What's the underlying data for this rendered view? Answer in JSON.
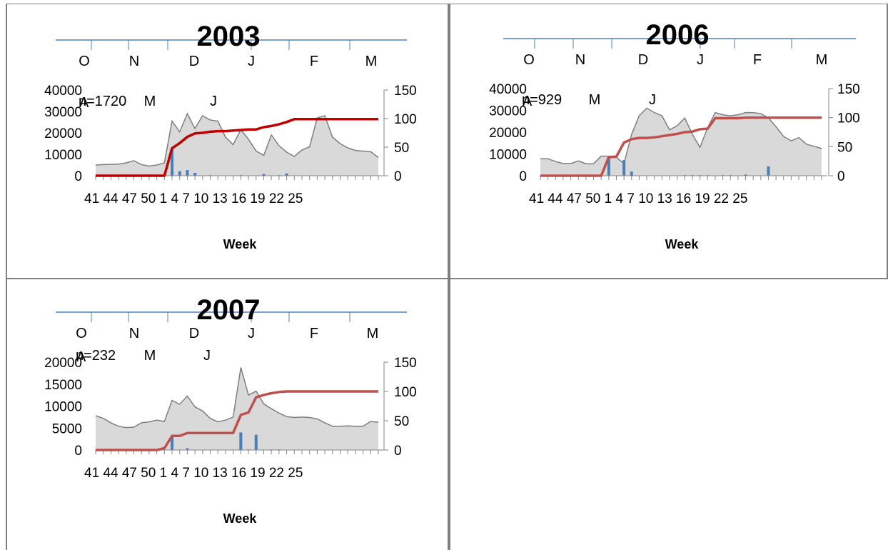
{
  "chart_data": [
    {
      "type": "area",
      "title": "2003",
      "n_label": "n=1720",
      "month_labels_top": [
        "O",
        "N",
        "D",
        "J",
        "F",
        "M"
      ],
      "month_labels_bottom": [
        "A",
        "M",
        "J"
      ],
      "xlabel": "Week",
      "weeks": [
        41,
        42,
        43,
        44,
        45,
        46,
        47,
        48,
        49,
        50,
        51,
        52,
        1,
        2,
        3,
        4,
        5,
        6,
        7,
        8,
        9,
        10,
        11,
        12,
        13,
        14,
        15,
        16,
        17,
        18,
        19,
        20,
        21,
        22,
        23,
        24,
        25,
        26
      ],
      "x_tick_labels": [
        "41",
        "44",
        "47",
        "50",
        "1",
        "4",
        "7",
        "10",
        "13",
        "16",
        "19",
        "22",
        "25"
      ],
      "ylim_left": [
        0,
        40000
      ],
      "yticks_left": [
        0,
        10000,
        20000,
        30000,
        40000
      ],
      "ylim_right": [
        0,
        150
      ],
      "yticks_right": [
        0,
        50,
        100,
        150
      ],
      "series": [
        {
          "kind": "area",
          "color": "#d9d9d9",
          "stroke": "#7f7f7f",
          "axis": "left",
          "values": [
            5000,
            5200,
            5300,
            5400,
            6000,
            7000,
            5200,
            4500,
            5000,
            6000,
            25500,
            20500,
            29000,
            22000,
            28000,
            26000,
            25500,
            18000,
            14500,
            21500,
            17000,
            11500,
            9500,
            19000,
            14000,
            11000,
            9000,
            12000,
            13500,
            27000,
            28000,
            18000,
            15000,
            13000,
            11800,
            11500,
            11200,
            8500
          ]
        },
        {
          "kind": "bar",
          "color": "#4a7ebb",
          "axis": "right",
          "values": [
            0,
            0,
            0,
            0,
            0,
            0,
            0,
            0,
            0,
            0,
            48,
            8,
            10,
            5,
            0,
            1,
            0,
            0,
            0,
            1,
            0,
            0,
            3,
            0,
            1,
            4,
            0,
            0,
            0,
            0,
            0,
            0,
            0,
            0,
            0,
            0,
            0,
            0
          ]
        },
        {
          "kind": "line",
          "color": "#c00000",
          "axis": "right",
          "values": [
            0,
            0,
            0,
            0,
            0,
            0,
            0,
            0,
            0,
            0,
            48,
            57,
            68,
            74,
            75,
            77,
            78,
            78,
            79,
            80,
            81,
            81,
            85,
            87,
            90,
            94,
            99,
            99,
            99,
            99,
            99,
            99,
            99,
            99,
            99,
            99,
            99,
            99
          ]
        }
      ]
    },
    {
      "type": "area",
      "title": "2006",
      "n_label": "n=929",
      "month_labels_top": [
        "O",
        "N",
        "D",
        "J",
        "F",
        "M"
      ],
      "month_labels_bottom": [
        "A",
        "M",
        "J"
      ],
      "xlabel": "Week",
      "weeks": [
        41,
        42,
        43,
        44,
        45,
        46,
        47,
        48,
        49,
        50,
        51,
        52,
        1,
        2,
        3,
        4,
        5,
        6,
        7,
        8,
        9,
        10,
        11,
        12,
        13,
        14,
        15,
        16,
        17,
        18,
        19,
        20,
        21,
        22,
        23,
        24,
        25,
        26
      ],
      "x_tick_labels": [
        "41",
        "44",
        "47",
        "50",
        "1",
        "4",
        "7",
        "10",
        "13",
        "16",
        "19",
        "22",
        "25"
      ],
      "ylim_left": [
        0,
        40000
      ],
      "yticks_left": [
        0,
        10000,
        20000,
        30000,
        40000
      ],
      "ylim_right": [
        0,
        150
      ],
      "yticks_right": [
        0,
        50,
        100,
        150
      ],
      "series": [
        {
          "kind": "area",
          "color": "#d9d9d9",
          "stroke": "#7f7f7f",
          "axis": "left",
          "values": [
            7800,
            7800,
            6500,
            5600,
            5600,
            6800,
            5500,
            5500,
            9000,
            9000,
            8500,
            5500,
            19000,
            27500,
            31000,
            29000,
            27500,
            21000,
            23000,
            26500,
            19000,
            13000,
            22000,
            29000,
            28000,
            27500,
            28000,
            29000,
            29000,
            28500,
            26500,
            22500,
            18000,
            16000,
            17500,
            14500,
            13500,
            12500
          ]
        },
        {
          "kind": "bar",
          "color": "#4a7ebb",
          "axis": "right",
          "values": [
            0,
            0,
            0,
            0,
            0,
            0,
            0,
            0,
            0,
            32,
            0,
            27,
            7,
            0,
            0,
            0,
            0,
            0,
            0,
            1,
            1,
            1,
            1,
            0,
            1,
            1,
            0,
            2,
            0,
            0,
            16,
            0,
            0,
            0,
            0,
            0,
            0,
            0
          ]
        },
        {
          "kind": "line",
          "color": "#c0504d",
          "axis": "right",
          "values": [
            0,
            0,
            0,
            0,
            0,
            0,
            0,
            0,
            0,
            32,
            33,
            57,
            63,
            65,
            65,
            66,
            68,
            70,
            72,
            75,
            76,
            80,
            81,
            99,
            99,
            99,
            99,
            100,
            100,
            100,
            100,
            100,
            100,
            100,
            100,
            100,
            100,
            100
          ]
        }
      ]
    },
    {
      "type": "area",
      "title": "2007",
      "n_label": "n=232",
      "month_labels_top": [
        "O",
        "N",
        "D",
        "J",
        "F",
        "M"
      ],
      "month_labels_bottom": [
        "A",
        "M",
        "J"
      ],
      "xlabel": "Week",
      "weeks": [
        41,
        42,
        43,
        44,
        45,
        46,
        47,
        48,
        49,
        50,
        51,
        52,
        1,
        2,
        3,
        4,
        5,
        6,
        7,
        8,
        9,
        10,
        11,
        12,
        13,
        14,
        15,
        16,
        17,
        18,
        19,
        20,
        21,
        22,
        23,
        24,
        25,
        26
      ],
      "x_tick_labels": [
        "41",
        "44",
        "47",
        "50",
        "1",
        "4",
        "7",
        "10",
        "13",
        "16",
        "19",
        "22",
        "25"
      ],
      "ylim_left": [
        0,
        20000
      ],
      "yticks_left": [
        0,
        5000,
        10000,
        15000,
        20000
      ],
      "ylim_right": [
        0,
        150
      ],
      "yticks_right": [
        0,
        50,
        100,
        150
      ],
      "series": [
        {
          "kind": "area",
          "color": "#d9d9d9",
          "stroke": "#7f7f7f",
          "axis": "left",
          "values": [
            7800,
            7200,
            6200,
            5400,
            5100,
            5200,
            6200,
            6400,
            6800,
            6500,
            11300,
            10400,
            12300,
            9800,
            8900,
            7200,
            6400,
            6800,
            7500,
            18800,
            12500,
            13400,
            10500,
            9400,
            8400,
            7600,
            7400,
            7500,
            7400,
            7100,
            6200,
            5400,
            5400,
            5500,
            5400,
            5400,
            6500,
            6300
          ]
        },
        {
          "kind": "bar",
          "color": "#4a7ebb",
          "axis": "right",
          "values": [
            0,
            0,
            0,
            0,
            0,
            0,
            0,
            0,
            0,
            0,
            22,
            0,
            3,
            0,
            0,
            0,
            0,
            0,
            0,
            30,
            1,
            26,
            0,
            1,
            1,
            0,
            0,
            0,
            0,
            0,
            0,
            0,
            0,
            0,
            0,
            0,
            0,
            0
          ]
        },
        {
          "kind": "line",
          "color": "#c0504d",
          "axis": "right",
          "values": [
            0,
            0,
            0,
            0,
            0,
            0,
            0,
            0,
            0,
            3,
            24,
            24,
            29,
            29,
            29,
            29,
            29,
            29,
            29,
            60,
            64,
            90,
            94,
            97,
            99,
            100,
            100,
            100,
            100,
            100,
            100,
            100,
            100,
            100,
            100,
            100,
            100,
            100
          ]
        }
      ]
    }
  ]
}
